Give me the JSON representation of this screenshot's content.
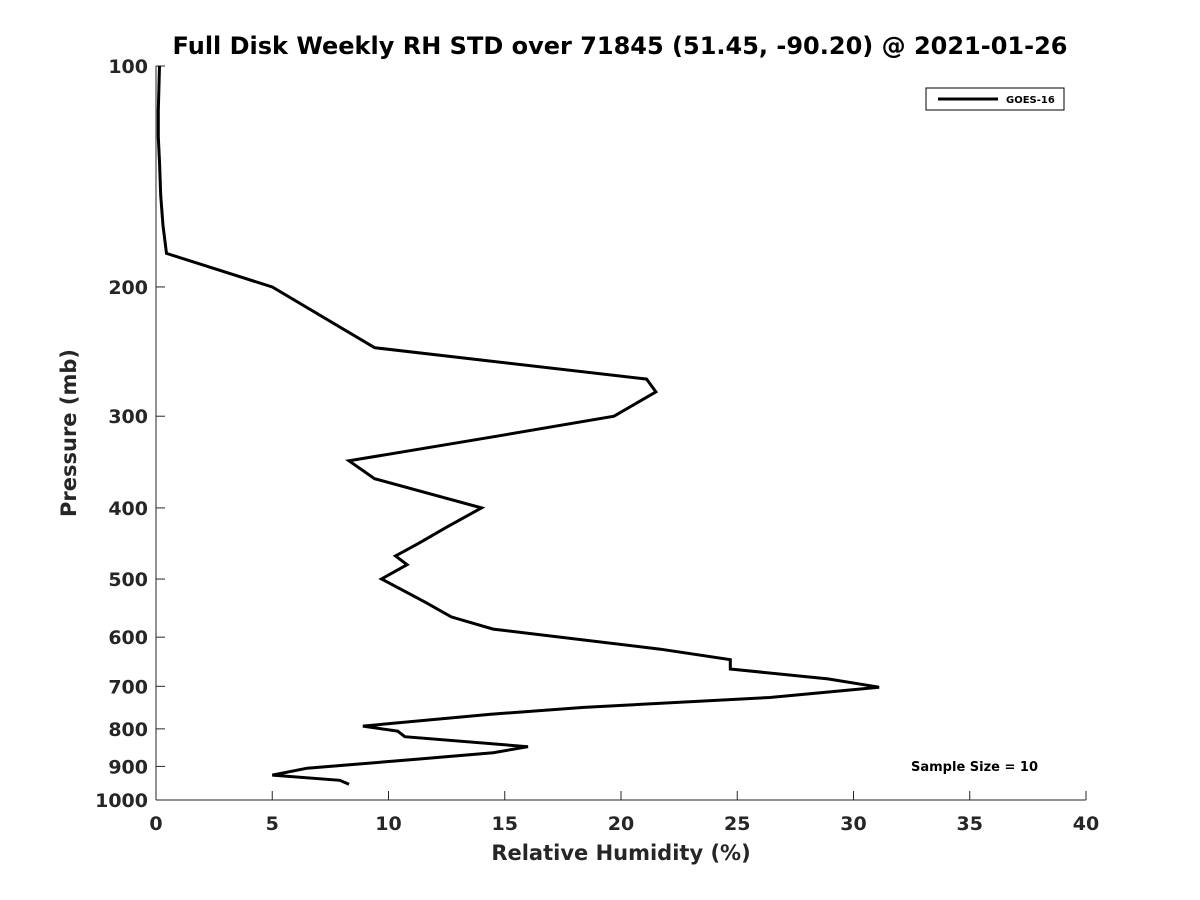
{
  "chart_data": {
    "type": "line",
    "title": "Full Disk Weekly RH STD over 71845 (51.45, -90.20) @ 2021-01-26",
    "xlabel": "Relative Humidity (%)",
    "ylabel": "Pressure (mb)",
    "xlim": [
      0,
      40
    ],
    "ylim": [
      100,
      1000
    ],
    "y_scale": "log",
    "y_reversed": true,
    "x_ticks": [
      "0",
      "5",
      "10",
      "15",
      "20",
      "25",
      "30",
      "35",
      "40"
    ],
    "y_ticks": [
      "100",
      "200",
      "300",
      "400",
      "500",
      "600",
      "700",
      "800",
      "900",
      "1000"
    ],
    "grid": false,
    "legend_position": "top-right",
    "annotation": "Sample Size = 10",
    "series": [
      {
        "name": "GOES-16",
        "color": "#000000",
        "points": [
          [
            0.15,
            100
          ],
          [
            0.1,
            115
          ],
          [
            0.1,
            125
          ],
          [
            0.15,
            135
          ],
          [
            0.2,
            150
          ],
          [
            0.3,
            165
          ],
          [
            0.45,
            180
          ],
          [
            5.0,
            200
          ],
          [
            9.4,
            242
          ],
          [
            21.1,
            267
          ],
          [
            21.5,
            278
          ],
          [
            19.7,
            300
          ],
          [
            14.5,
            320
          ],
          [
            8.3,
            345
          ],
          [
            9.4,
            365
          ],
          [
            14.0,
            400
          ],
          [
            12.5,
            425
          ],
          [
            11.3,
            447
          ],
          [
            10.3,
            465
          ],
          [
            10.8,
            478
          ],
          [
            9.7,
            500
          ],
          [
            11.6,
            538
          ],
          [
            12.7,
            563
          ],
          [
            14.5,
            585
          ],
          [
            21.7,
            623
          ],
          [
            24.7,
            644
          ],
          [
            24.7,
            663
          ],
          [
            28.9,
            684
          ],
          [
            31.1,
            702
          ],
          [
            26.4,
            725
          ],
          [
            18.4,
            748
          ],
          [
            14.4,
            764
          ],
          [
            8.9,
            793
          ],
          [
            10.4,
            806
          ],
          [
            10.7,
            820
          ],
          [
            16.0,
            846
          ],
          [
            14.5,
            862
          ],
          [
            11.2,
            880
          ],
          [
            6.5,
            905
          ],
          [
            5.0,
            925
          ],
          [
            7.9,
            940
          ],
          [
            8.3,
            952
          ]
        ]
      }
    ]
  }
}
